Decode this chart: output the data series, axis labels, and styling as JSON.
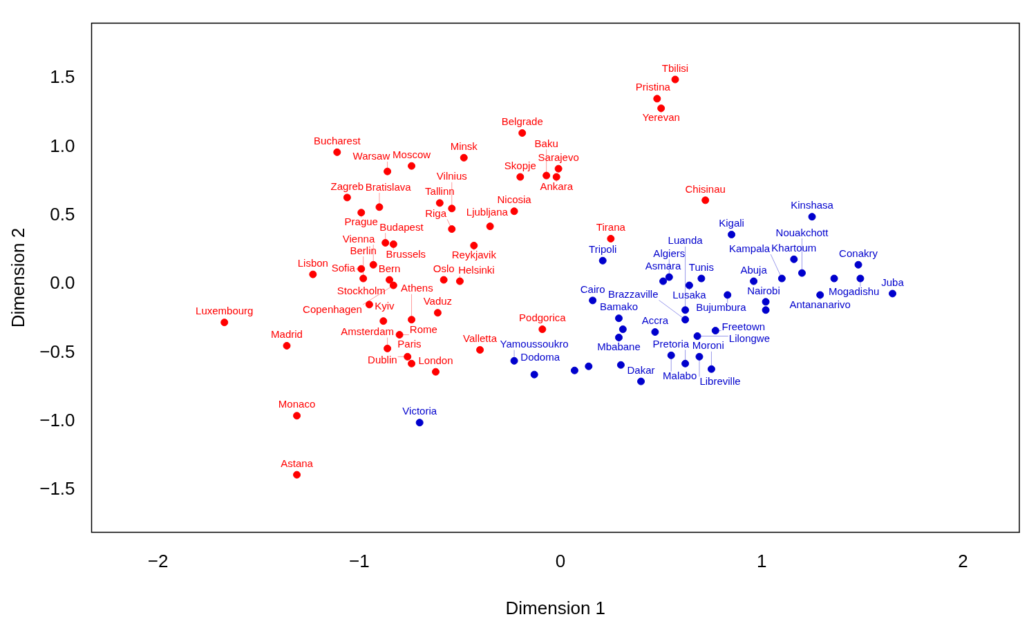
{
  "chart_data": {
    "type": "scatter",
    "xlabel": "Dimension 1",
    "ylabel": "Dimension 2",
    "xlim": [
      -2.33,
      2.28
    ],
    "ylim": [
      -1.81,
      1.9
    ],
    "xticks": [
      {
        "value": -2,
        "label": "−2"
      },
      {
        "value": -1,
        "label": "−1"
      },
      0,
      1,
      2
    ],
    "yticks": [
      {
        "value": -1.5,
        "label": "−1.5"
      },
      {
        "value": -1,
        "label": "−1.0"
      },
      {
        "value": -0.5,
        "label": "−0.5"
      },
      {
        "value": 0,
        "label": "0.0"
      },
      0.5,
      {
        "value": 1,
        "label": "1.0"
      },
      1.5
    ],
    "grid": false,
    "legend": false,
    "marker": "circle",
    "series": [
      {
        "color": "#ff0000",
        "x": [
          0.57,
          0.48,
          0.5,
          -0.19,
          -1.11,
          -0.86,
          -0.74,
          -0.48,
          -0.01,
          -0.2,
          -0.07,
          -0.02,
          0.72,
          -1.06,
          -0.9,
          -0.99,
          -0.6,
          -0.54,
          -0.23,
          -0.35,
          -0.54,
          -0.43,
          0.25,
          -0.87,
          -0.83,
          -0.93,
          -0.99,
          -1.23,
          -0.98,
          -0.85,
          -0.83,
          -0.58,
          -0.5,
          -0.95,
          -0.61,
          -0.88,
          -0.74,
          -0.8,
          -1.67,
          -1.36,
          -0.86,
          -0.4,
          -0.76,
          -0.74,
          -0.62,
          -0.09,
          -1.31,
          -1.31
        ],
        "values": [
          1.49,
          1.35,
          1.28,
          1.1,
          0.96,
          0.82,
          0.86,
          0.92,
          0.84,
          0.78,
          0.79,
          0.78,
          0.61,
          0.63,
          0.56,
          0.52,
          0.59,
          0.55,
          0.53,
          0.42,
          0.4,
          0.28,
          0.33,
          0.3,
          0.29,
          0.14,
          0.11,
          0.07,
          0.04,
          0.03,
          -0.01,
          0.03,
          0.02,
          -0.15,
          -0.21,
          -0.27,
          -0.26,
          -0.37,
          -0.28,
          -0.45,
          -0.47,
          -0.48,
          -0.53,
          -0.58,
          -0.64,
          -0.33,
          -0.96,
          -1.39
        ],
        "value_labels": [
          "Tbilisi",
          "Pristina",
          "Yerevan",
          "Belgrade",
          "Bucharest",
          "Warsaw",
          "Moscow",
          "Minsk",
          "Sarajevo",
          "Skopje",
          "Baku",
          "Ankara",
          "Chisinau",
          "Zagreb",
          "Bratislava",
          "Prague",
          "Tallinn",
          "Vilnius",
          "Nicosia",
          "Ljubljana",
          "Riga",
          "Reykjavik",
          "Tirana",
          "Budapest",
          "Brussels",
          "Vienna",
          "Sofia",
          "Lisbon",
          "Berlin",
          "Bern",
          "Copenhagen",
          "Oslo",
          "Helsinki",
          "Stockholm",
          "Vaduz",
          "Kyiv",
          "Athens",
          "Rome",
          "Luxembourg",
          "Madrid",
          "Amsterdam",
          "Valletta",
          "Dublin",
          "Paris",
          "London",
          "Podgorica",
          "Monaco",
          "Astana"
        ]
      },
      {
        "color": "#0000cd",
        "x": [
          1.25,
          0.85,
          1.16,
          0.21,
          1.48,
          1.49,
          1.65,
          1.2,
          1.1,
          0.96,
          1.29,
          0.51,
          0.54,
          0.7,
          0.64,
          0.83,
          1.02,
          0.62,
          0.16,
          0.29,
          0.29,
          0.62,
          0.77,
          0.68,
          0.47,
          0.55,
          0.69,
          0.75,
          0.62,
          0.4,
          -0.23,
          -0.13,
          -0.7,
          0.3,
          0.14,
          0.07,
          1.02,
          1.36,
          0.31
        ],
        "values": [
          0.49,
          0.36,
          0.18,
          0.17,
          0.14,
          0.04,
          -0.07,
          0.08,
          0.04,
          0.02,
          -0.08,
          0.02,
          0.05,
          0.04,
          -0.01,
          -0.08,
          -0.19,
          -0.19,
          -0.12,
          -0.25,
          -0.39,
          -0.26,
          -0.34,
          -0.38,
          -0.35,
          -0.52,
          -0.53,
          -0.62,
          -0.58,
          -0.71,
          -0.56,
          -0.66,
          -1.01,
          -0.59,
          -0.6,
          -0.63,
          -0.13,
          0.04,
          -0.33
        ],
        "value_labels": [
          "Kinshasa",
          "Kigali",
          "Khartoum",
          "Tripoli",
          "Conakry",
          "Mogadishu",
          "Juba",
          "Nouakchott",
          "Kampala",
          "Abuja",
          "Antananarivo",
          "Asmara",
          "Algiers",
          "Tunis",
          "Lusaka",
          "Bujumbura",
          "Nairobi",
          "Luanda",
          "Cairo",
          "Bamako",
          "Mbabane",
          "Brazzaville",
          "Freetown",
          "Lilongwe",
          "Accra",
          "Malabo",
          "Libreville",
          "Moroni",
          "Pretoria",
          "Dakar",
          "Yamoussoukro",
          "Dodoma",
          "Victoria",
          null,
          null,
          null,
          null,
          null,
          null
        ]
      }
    ]
  }
}
